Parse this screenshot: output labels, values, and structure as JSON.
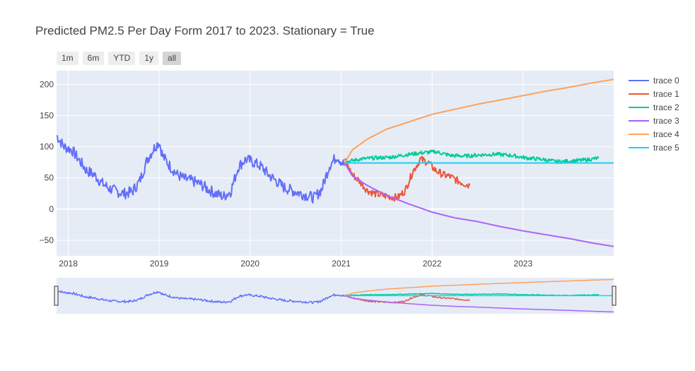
{
  "title": "Predicted PM2.5 Per Day Form 2017 to 2023. Stationary = True",
  "range_selector": {
    "buttons": [
      "1m",
      "6m",
      "YTD",
      "1y",
      "all"
    ],
    "active": "all"
  },
  "colors": {
    "plot_bg": "#e5ecf6",
    "grid": "#ffffff",
    "trace0": "#636efa",
    "trace1": "#ef553b",
    "trace2": "#00cc96",
    "trace3": "#ab63fa",
    "trace4": "#ffa15a",
    "trace5": "#19d3f3"
  },
  "chart_data": {
    "type": "line",
    "title": "Predicted PM2.5 Per Day Form 2017 to 2023. Stationary = True",
    "xlabel": "",
    "ylabel": "",
    "x_type": "date",
    "xlim": [
      "2017-11-15",
      "2023-12-31"
    ],
    "ylim": [
      -75,
      222
    ],
    "x_ticks": [
      "2018",
      "2019",
      "2020",
      "2021",
      "2022",
      "2023"
    ],
    "y_ticks": [
      -50,
      0,
      50,
      100,
      150,
      200
    ],
    "grid": true,
    "legend_position": "right",
    "range_slider": true,
    "series": [
      {
        "name": "trace 0",
        "points": [
          [
            "2017-11-15",
            118
          ],
          [
            "2017-12-15",
            100
          ],
          [
            "2018-01-15",
            95
          ],
          [
            "2018-02-15",
            78
          ],
          [
            "2018-03-15",
            62
          ],
          [
            "2018-04-15",
            55
          ],
          [
            "2018-05-15",
            42
          ],
          [
            "2018-06-15",
            33
          ],
          [
            "2018-07-15",
            28
          ],
          [
            "2018-08-15",
            25
          ],
          [
            "2018-09-15",
            28
          ],
          [
            "2018-10-15",
            45
          ],
          [
            "2018-11-15",
            80
          ],
          [
            "2018-12-15",
            100
          ],
          [
            "2019-01-01",
            108
          ],
          [
            "2019-01-15",
            85
          ],
          [
            "2019-02-15",
            68
          ],
          [
            "2019-03-15",
            55
          ],
          [
            "2019-04-15",
            48
          ],
          [
            "2019-05-15",
            45
          ],
          [
            "2019-06-15",
            40
          ],
          [
            "2019-07-15",
            32
          ],
          [
            "2019-08-15",
            25
          ],
          [
            "2019-09-15",
            20
          ],
          [
            "2019-10-15",
            28
          ],
          [
            "2019-11-15",
            68
          ],
          [
            "2019-12-15",
            80
          ],
          [
            "2020-01-15",
            75
          ],
          [
            "2020-02-15",
            68
          ],
          [
            "2020-03-15",
            55
          ],
          [
            "2020-04-15",
            45
          ],
          [
            "2020-05-15",
            35
          ],
          [
            "2020-06-15",
            30
          ],
          [
            "2020-07-15",
            26
          ],
          [
            "2020-08-15",
            22
          ],
          [
            "2020-09-15",
            18
          ],
          [
            "2020-10-15",
            32
          ],
          [
            "2020-11-15",
            70
          ],
          [
            "2020-12-15",
            85
          ],
          [
            "2021-01-15",
            70
          ]
        ]
      },
      {
        "name": "trace 1",
        "points": [
          [
            "2021-01-15",
            78
          ],
          [
            "2021-02-15",
            55
          ],
          [
            "2021-03-15",
            45
          ],
          [
            "2021-04-15",
            30
          ],
          [
            "2021-05-15",
            25
          ],
          [
            "2021-06-15",
            22
          ],
          [
            "2021-07-15",
            20
          ],
          [
            "2021-08-15",
            18
          ],
          [
            "2021-09-15",
            30
          ],
          [
            "2021-10-15",
            60
          ],
          [
            "2021-11-15",
            80
          ],
          [
            "2021-12-15",
            75
          ],
          [
            "2022-01-15",
            62
          ],
          [
            "2022-02-15",
            55
          ],
          [
            "2022-03-15",
            52
          ],
          [
            "2022-04-15",
            45
          ],
          [
            "2022-05-15",
            40
          ],
          [
            "2022-06-01",
            38
          ]
        ]
      },
      {
        "name": "trace 2",
        "points": [
          [
            "2021-01-15",
            75
          ],
          [
            "2021-03-15",
            80
          ],
          [
            "2021-05-15",
            82
          ],
          [
            "2021-07-15",
            83
          ],
          [
            "2021-09-15",
            87
          ],
          [
            "2021-11-15",
            90
          ],
          [
            "2022-01-15",
            92
          ],
          [
            "2022-03-15",
            86
          ],
          [
            "2022-05-15",
            85
          ],
          [
            "2022-07-15",
            87
          ],
          [
            "2022-09-15",
            88
          ],
          [
            "2022-11-15",
            86
          ],
          [
            "2023-01-15",
            82
          ],
          [
            "2023-03-15",
            80
          ],
          [
            "2023-05-15",
            76
          ],
          [
            "2023-07-15",
            77
          ],
          [
            "2023-09-15",
            79
          ],
          [
            "2023-11-01",
            82
          ]
        ]
      },
      {
        "name": "trace 3",
        "points": [
          [
            "2021-01-15",
            74
          ],
          [
            "2021-02-15",
            53
          ],
          [
            "2021-04-15",
            38
          ],
          [
            "2021-07-01",
            22
          ],
          [
            "2021-10-01",
            8
          ],
          [
            "2022-01-01",
            -5
          ],
          [
            "2022-04-01",
            -14
          ],
          [
            "2022-07-01",
            -20
          ],
          [
            "2022-10-01",
            -28
          ],
          [
            "2023-01-01",
            -35
          ],
          [
            "2023-04-01",
            -41
          ],
          [
            "2023-07-01",
            -47
          ],
          [
            "2023-10-01",
            -54
          ],
          [
            "2023-12-31",
            -60
          ]
        ]
      },
      {
        "name": "trace 4",
        "points": [
          [
            "2021-01-15",
            74
          ],
          [
            "2021-02-15",
            95
          ],
          [
            "2021-04-15",
            112
          ],
          [
            "2021-07-01",
            128
          ],
          [
            "2021-10-01",
            140
          ],
          [
            "2022-01-01",
            152
          ],
          [
            "2022-04-01",
            160
          ],
          [
            "2022-07-01",
            168
          ],
          [
            "2022-10-01",
            175
          ],
          [
            "2023-01-01",
            182
          ],
          [
            "2023-04-01",
            189
          ],
          [
            "2023-07-01",
            195
          ],
          [
            "2023-10-01",
            202
          ],
          [
            "2023-12-31",
            208
          ]
        ]
      },
      {
        "name": "trace 5",
        "points": [
          [
            "2021-01-15",
            74
          ],
          [
            "2023-12-31",
            74
          ]
        ]
      }
    ]
  }
}
